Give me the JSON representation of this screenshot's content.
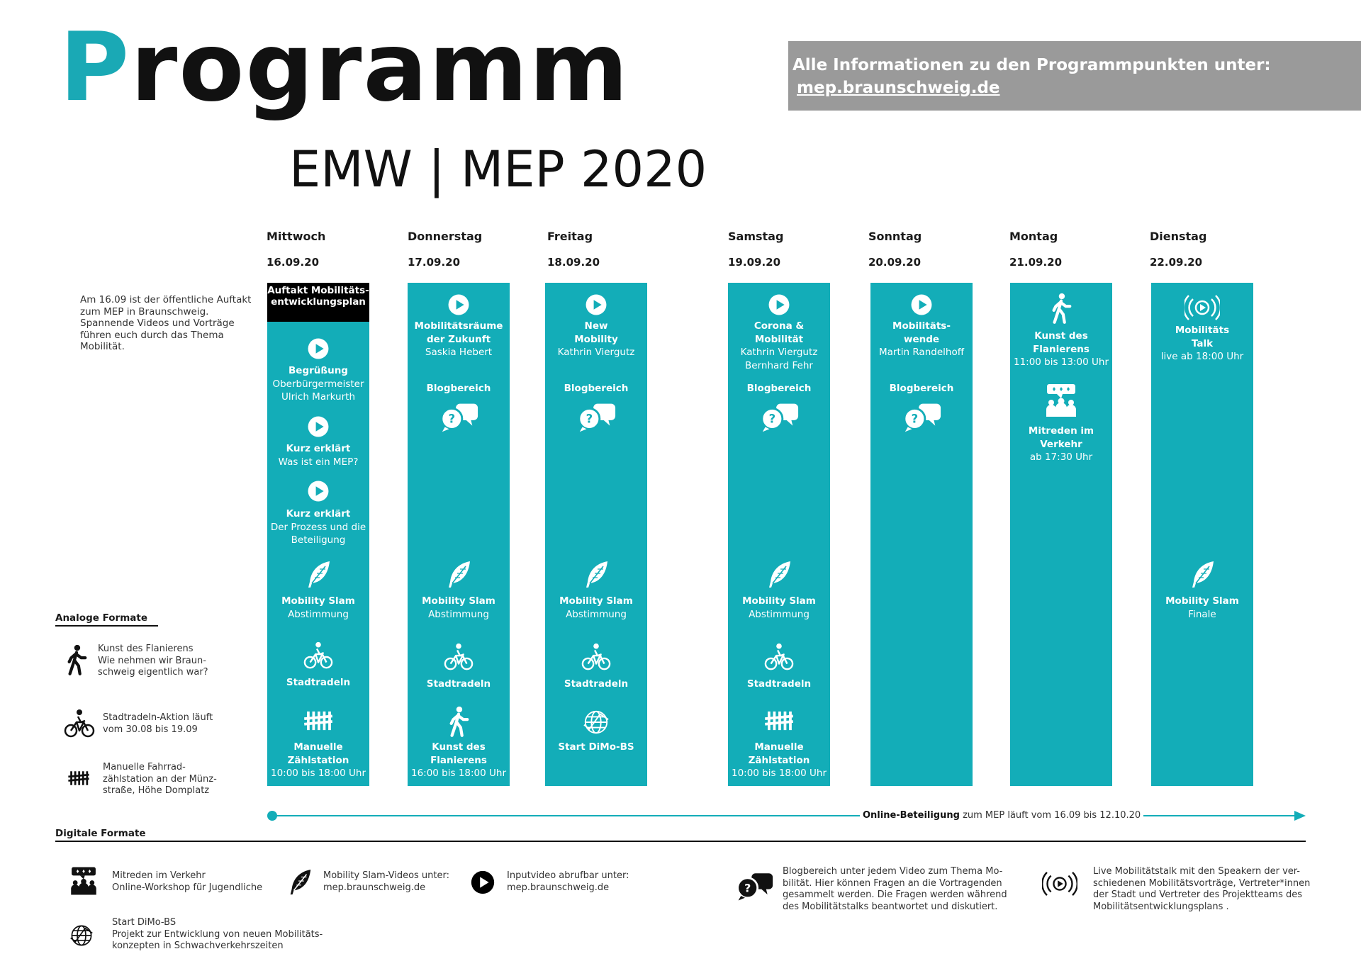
{
  "header": {
    "title_first_letter": "P",
    "title_rest": "rogramm",
    "subtitle": "EMW | MEP 2020",
    "info_line": "Alle Informationen zu den Programmpunkten unter:",
    "info_link": "mep.braunschweig.de"
  },
  "intro_note": "Am 16.09 ist der öffentliche Auftakt zum MEP in Braunschweig. Spannende Videos und Vorträge führen euch durch das Thema Mobilität.",
  "days": [
    {
      "name": "Mittwoch",
      "date": "16.09.20"
    },
    {
      "name": "Donnerstag",
      "date": "17.09.20"
    },
    {
      "name": "Freitag",
      "date": "18.09.20"
    },
    {
      "name": "Samstag",
      "date": "19.09.20"
    },
    {
      "name": "Sonntag",
      "date": "20.09.20"
    },
    {
      "name": "Montag",
      "date": "21.09.20"
    },
    {
      "name": "Dienstag",
      "date": "22.09.20"
    }
  ],
  "wed": {
    "auftakt": "Auftakt Mobilitäts-entwicklungsplan",
    "b1_title": "Begrüßung",
    "b1_l1": "Oberbürgermeister",
    "b1_l2": "Ulrich Markurth",
    "b2_title": "Kurz erklärt",
    "b2_l1": "Was ist ein MEP?",
    "b3_title": "Kurz erklärt",
    "b3_l1": "Der Prozess und die",
    "b3_l2": "Beteiligung",
    "slam_title": "Mobility Slam",
    "slam_sub": "Abstimmung",
    "bike": "Stadtradeln",
    "count_title": "Manuelle Zählstation",
    "count_sub": "10:00 bis 18:00 Uhr"
  },
  "thu": {
    "v_l1": "Mobilitätsräume",
    "v_l2": "der Zukunft",
    "v_l3": "Saskia Hebert",
    "blog": "Blogbereich",
    "slam_title": "Mobility Slam",
    "slam_sub": "Abstimmung",
    "bike": "Stadtradeln",
    "walk_title": "Kunst des Flanierens",
    "walk_sub": "16:00 bis 18:00 Uhr"
  },
  "fri": {
    "v_l1": "New",
    "v_l2": "Mobility",
    "v_l3": "Kathrin Viergutz",
    "blog": "Blogbereich",
    "slam_title": "Mobility Slam",
    "slam_sub": "Abstimmung",
    "bike": "Stadtradeln",
    "globe": "Start DiMo-BS"
  },
  "sat": {
    "v_l1": "Corona &",
    "v_l2": "Mobilität",
    "v_l3": "Kathrin Viergutz",
    "v_l4": "Bernhard Fehr",
    "blog": "Blogbereich",
    "slam_title": "Mobility Slam",
    "slam_sub": "Abstimmung",
    "bike": "Stadtradeln",
    "count_title": "Manuelle Zählstation",
    "count_sub": "10:00 bis 18:00 Uhr"
  },
  "sun": {
    "v_l1": "Mobilitäts-",
    "v_l2": "wende",
    "v_l3": "Martin Randelhoff",
    "blog": "Blogbereich"
  },
  "mon": {
    "walk_title": "Kunst des Flanierens",
    "walk_sub": "11:00 bis 13:00 Uhr",
    "talk_title": "Mitreden im Verkehr",
    "talk_sub": "ab 17:30 Uhr"
  },
  "tue": {
    "live_l1": "Mobilitäts",
    "live_l2": "Talk",
    "live_l3": "live ab 18:00 Uhr",
    "slam_title": "Mobility Slam",
    "slam_sub": "Finale"
  },
  "analog": {
    "heading": "Analoge Formate",
    "walk_l1": "Kunst des Flanierens",
    "walk_l2": "Wie nehmen wir Braun-",
    "walk_l3": "schweig eigentlich war?",
    "bike_l1": "Stadtradeln-Aktion läuft",
    "bike_l2": "vom 30.08 bis 19.09",
    "count_l1": "Manuelle Fahrrad-",
    "count_l2": "zählstation an der Münz-",
    "count_l3": "straße, Höhe Domplatz"
  },
  "online": {
    "bold": "Online-Beteiligung",
    "rest": " zum MEP läuft vom 16.09 bis 12.10.20"
  },
  "digital": {
    "heading": "Digitale Formate",
    "talk_l1": "Mitreden im Verkehr",
    "talk_l2": "Online-Workshop für Jugendliche",
    "slam_l1": "Mobility Slam-Videos unter:",
    "slam_l2": "mep.braunschweig.de",
    "video_l1": "Inputvideo abrufbar unter:",
    "video_l2": "mep.braunschweig.de",
    "blog_l1": "Blogbereich unter jedem Video zum Thema Mo-",
    "blog_l2": "bilität. Hier können Fragen an die Vortragenden",
    "blog_l3": "gesammelt werden. Die Fragen werden während",
    "blog_l4": "des Mobilitätstalks beantwortet und diskutiert.",
    "live_l1": "Live Mobilitätstalk mit den Speakern der ver-",
    "live_l2": "schiedenen Mobilitätsvorträge, Vertreter*innen",
    "live_l3": "der Stadt und Vertreter des Projektteams des",
    "live_l4": "Mobilitätsentwicklungsplans .",
    "dimo_l1": "Start DiMo-BS",
    "dimo_l2": "Projekt zur Entwicklung von neuen Mobilitäts-",
    "dimo_l3": "konzepten in Schwachverkehrszeiten"
  },
  "colors": {
    "accent": "#13adb8",
    "grey_box": "#9a9a9a",
    "black": "#000000"
  },
  "icons": [
    "play-icon",
    "speech-bubbles-icon",
    "feather-icon",
    "bicycle-icon",
    "tally-icon",
    "walking-person-icon",
    "globe-icon",
    "live-broadcast-icon",
    "group-chat-icon"
  ]
}
